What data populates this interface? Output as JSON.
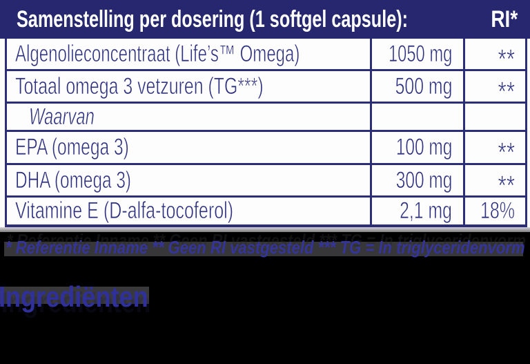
{
  "colors": {
    "header_background": "#26276f",
    "table_border": "#2b2d78",
    "table_text": "#2e3180",
    "cell_background": "#fdfdfd",
    "page_background": "#000000",
    "footnote_text": "#34349a",
    "heading_text": "#30309a",
    "divider_gray": "#9a9a9e"
  },
  "table": {
    "header": {
      "title": "Samenstelling per dosering (1 softgel capsule):",
      "ri_label": "RI*"
    },
    "columns": [
      "name",
      "amount",
      "ri"
    ],
    "rows": [
      {
        "name": "Algenolieconcentraat (Life’s™ Omega)",
        "amount": "1050 mg",
        "ri": "**"
      },
      {
        "name": "Totaal omega 3 vetzuren (TG***)",
        "amount": "500 mg",
        "ri": "**"
      },
      {
        "name": "Waarvan",
        "amount": "",
        "ri": ""
      },
      {
        "name": "EPA (omega 3)",
        "amount": "100 mg",
        "ri": "**"
      },
      {
        "name": "DHA (omega 3)",
        "amount": "300 mg",
        "ri": "**"
      },
      {
        "name": "Vitamine E (D-alfa-tocoferol)",
        "amount": "2,1 mg",
        "ri": "18%"
      }
    ]
  },
  "footnote": "* Referentie Inname  ** Geen RI vastgesteld *** TG = In triglyceridenvorm",
  "ingredients_heading": "Ingrediënten"
}
